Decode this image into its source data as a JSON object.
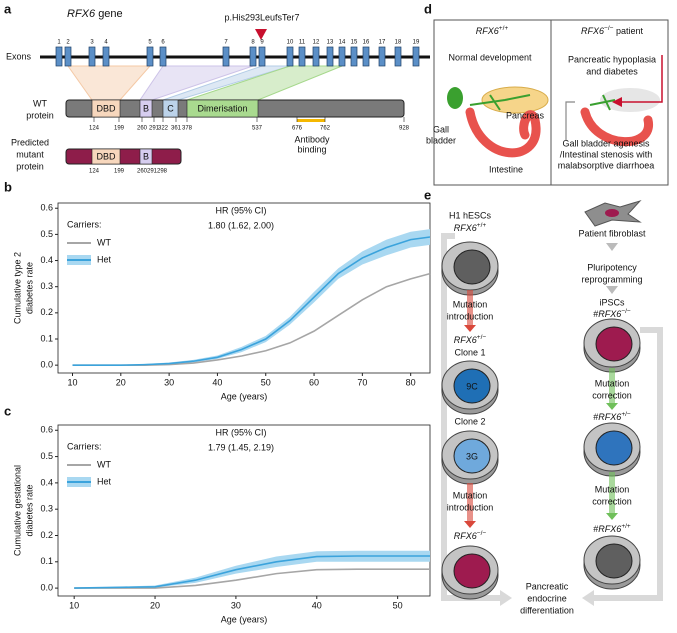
{
  "panel_labels": [
    "a",
    "b",
    "c",
    "d",
    "e"
  ],
  "gene_diagram": {
    "gene": "RFX6",
    "gene_suffix": "gene",
    "mutation": "p.His293LeufsTer7",
    "exons_label": "Exons",
    "exon_numbers": [
      1,
      2,
      3,
      4,
      5,
      6,
      7,
      8,
      9,
      10,
      11,
      12,
      13,
      14,
      15,
      16,
      17,
      18,
      19
    ],
    "wt_label": [
      "WT",
      "protein"
    ],
    "domains": [
      "DBD",
      "B",
      "C",
      "Dimerisation"
    ],
    "wt_positions": [
      124,
      199,
      260,
      291,
      322,
      361,
      378,
      537,
      676,
      762,
      928
    ],
    "antibody": [
      "Antibody",
      "binding"
    ],
    "mutant_label": [
      "Predicted",
      "mutant",
      "protein"
    ],
    "mutant_domains": [
      "DBD",
      "B"
    ],
    "mutant_positions": [
      124,
      199,
      260,
      291,
      298
    ]
  },
  "chart_data": [
    {
      "type": "line",
      "ylabel": [
        "Cumulative type 2",
        "diabetes rate"
      ],
      "xlabel": "Age (years)",
      "xlim": [
        7,
        84
      ],
      "ylim": [
        -0.03,
        0.62
      ],
      "xticks": [
        10,
        20,
        30,
        40,
        50,
        60,
        70,
        80
      ],
      "yticks": [
        {
          "value": 0,
          "label": "0.0"
        },
        0.1,
        0.2,
        0.3,
        0.4,
        0.5,
        0.6
      ],
      "legend_title": "Carriers:",
      "annotation_title": "HR (95% CI)",
      "annotation": "1.80 (1.62, 2.00)",
      "x": [
        10,
        20,
        25,
        30,
        35,
        40,
        45,
        50,
        55,
        60,
        65,
        70,
        75,
        80,
        84
      ],
      "series": [
        {
          "name": "WT",
          "color": "#a6a6a6",
          "values": [
            0,
            0,
            0,
            0.002,
            0.008,
            0.02,
            0.035,
            0.055,
            0.085,
            0.13,
            0.19,
            0.25,
            0.3,
            0.33,
            0.35
          ]
        },
        {
          "name": "Het",
          "color": "#3ba3dc",
          "ci_color": "#a9d8f1",
          "values": [
            0,
            0,
            0.002,
            0.006,
            0.015,
            0.03,
            0.06,
            0.1,
            0.17,
            0.26,
            0.35,
            0.41,
            0.45,
            0.48,
            0.49
          ],
          "ci_lower": [
            0,
            0,
            0,
            0.003,
            0.01,
            0.024,
            0.05,
            0.088,
            0.155,
            0.24,
            0.33,
            0.385,
            0.42,
            0.45,
            0.46
          ],
          "ci_upper": [
            0,
            0,
            0.005,
            0.01,
            0.02,
            0.037,
            0.07,
            0.112,
            0.185,
            0.28,
            0.37,
            0.435,
            0.48,
            0.51,
            0.52
          ]
        }
      ]
    },
    {
      "type": "line",
      "ylabel": [
        "Cumulative gestational",
        "diabetes rate"
      ],
      "xlabel": "Age (years)",
      "xlim": [
        8,
        54
      ],
      "ylim": [
        -0.03,
        0.62
      ],
      "xticks": [
        10,
        20,
        30,
        40,
        50
      ],
      "yticks": [
        {
          "value": 0,
          "label": "0.0"
        },
        0.1,
        0.2,
        0.3,
        0.4,
        0.5,
        0.6
      ],
      "legend_title": "Carriers:",
      "annotation_title": "HR (95% CI)",
      "annotation": "1.79 (1.45, 2.19)",
      "x": [
        10,
        20,
        25,
        30,
        35,
        40,
        45,
        50,
        54
      ],
      "series": [
        {
          "name": "WT",
          "color": "#a6a6a6",
          "values": [
            0,
            0,
            0.01,
            0.03,
            0.055,
            0.07,
            0.072,
            0.072,
            0.072
          ]
        },
        {
          "name": "Het",
          "color": "#3ba3dc",
          "ci_color": "#a9d8f1",
          "values": [
            0,
            0.005,
            0.03,
            0.07,
            0.1,
            0.12,
            0.122,
            0.122,
            0.122
          ],
          "ci_lower": [
            0,
            0.002,
            0.02,
            0.055,
            0.08,
            0.1,
            0.1,
            0.1,
            0.1
          ],
          "ci_upper": [
            0,
            0.01,
            0.04,
            0.085,
            0.12,
            0.14,
            0.142,
            0.142,
            0.142
          ]
        }
      ]
    }
  ],
  "panel_d": {
    "wt_header": {
      "gene": "RFX6",
      "sup": "+/+"
    },
    "patient_header": {
      "gene": "RFX6",
      "sup": "−/−",
      "suffix": "patient"
    },
    "normal": "Normal development",
    "gall_bladder": [
      "Gall",
      "bladder"
    ],
    "pancreas": "Pancreas",
    "intestine": "Intestine",
    "phenotype": [
      "Pancreatic hypoplasia",
      "and diabetes"
    ],
    "gi_phenotype": [
      "Gall bladder agenesis",
      "/Intestinal stenosis with",
      "malabsorptive diarrhoea"
    ]
  },
  "panel_e": {
    "fibroblast": "Patient fibroblast",
    "reprogramming": [
      "Pluripotency",
      "reprogramming"
    ],
    "ipsc": "iPSCs",
    "ipsc_genotype": {
      "prefix": "#",
      "gene": "RFX6",
      "sup": "−/−"
    },
    "correction_1": [
      "Mutation",
      "correction"
    ],
    "corrected_het": {
      "prefix": "#",
      "gene": "RFX6",
      "sup": "+/−"
    },
    "correction_2": [
      "Mutation",
      "correction"
    ],
    "corrected_wt": {
      "prefix": "#",
      "gene": "RFX6",
      "sup": "+/+"
    },
    "hesc": "H1 hESCs",
    "hesc_genotype": {
      "gene": "RFX6",
      "sup": "+/+"
    },
    "introduction_1": [
      "Mutation",
      "introduction"
    ],
    "het_genotype": {
      "gene": "RFX6",
      "sup": "+/−"
    },
    "clone_1": "Clone 1",
    "clone_1_id": "9C",
    "clone_2": "Clone 2",
    "clone_2_id": "3G",
    "introduction_2": [
      "Mutation",
      "introduction"
    ],
    "ko_genotype": {
      "gene": "RFX6",
      "sup": "−/−"
    },
    "outcome": [
      "Pancreatic",
      "endocrine",
      "differentiation"
    ]
  }
}
